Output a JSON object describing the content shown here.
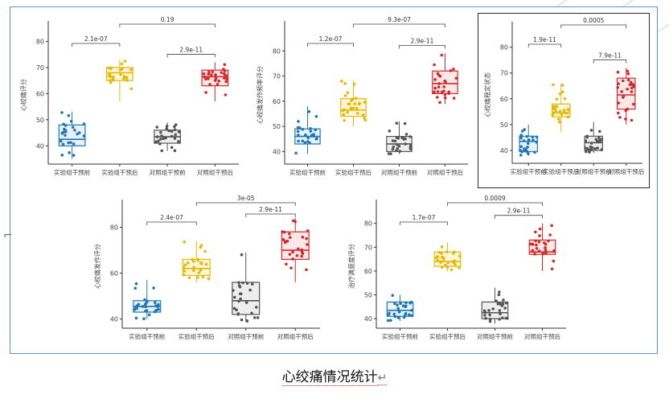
{
  "caption": "心绞痛情况统计",
  "colors": {
    "blue": "#1f77b4",
    "yellow": "#e6b800",
    "gray": "#555555",
    "red": "#d62728",
    "border": "#5b8fd6"
  },
  "chart_data": [
    {
      "type": "box",
      "ylabel": "心绞痛评分",
      "ylim": [
        33,
        86
      ],
      "yticks": [
        40,
        50,
        60,
        70,
        80
      ],
      "categories": [
        "实验组干预前",
        "实验组干预后",
        "对照组干预前",
        "对照组干预后"
      ],
      "boxes": [
        {
          "min": 35,
          "q1": 40,
          "median": 42.5,
          "q3": 48,
          "max": 53
        },
        {
          "min": 57,
          "q1": 65,
          "median": 68,
          "q3": 70,
          "max": 73
        },
        {
          "min": 38,
          "q1": 41,
          "median": 43.5,
          "q3": 46,
          "max": 49
        },
        {
          "min": 57,
          "q1": 63,
          "median": 66.5,
          "q3": 69,
          "max": 72
        }
      ],
      "comparisons": [
        {
          "from": 0,
          "to": 1,
          "label": "2.1e-07"
        },
        {
          "from": 1,
          "to": 3,
          "label": "0.19"
        },
        {
          "from": 2,
          "to": 3,
          "label": "2.9e-11"
        }
      ]
    },
    {
      "type": "box",
      "ylabel": "心绞痛发作频率评分",
      "ylim": [
        35,
        90
      ],
      "yticks": [
        40,
        50,
        60,
        70,
        80
      ],
      "categories": [
        "实验组干预前",
        "实验组干预后",
        "对照组干预前",
        "对照组干预后"
      ],
      "boxes": [
        {
          "min": 39,
          "q1": 43,
          "median": 46,
          "q3": 49,
          "max": 58
        },
        {
          "min": 50,
          "q1": 54,
          "median": 56.5,
          "q3": 61,
          "max": 68
        },
        {
          "min": 39,
          "q1": 40,
          "median": 43,
          "q3": 46,
          "max": 52
        },
        {
          "min": 59,
          "q1": 63,
          "median": 67,
          "q3": 72,
          "max": 79
        }
      ],
      "comparisons": [
        {
          "from": 0,
          "to": 1,
          "label": "1.2e-07"
        },
        {
          "from": 1,
          "to": 3,
          "label": "9.3e-07"
        },
        {
          "from": 2,
          "to": 3,
          "label": "2.9e-11"
        }
      ]
    },
    {
      "type": "box",
      "ylabel": "心绞痛稳定状态",
      "ylim": [
        35,
        88
      ],
      "yticks": [
        40,
        50,
        60,
        70,
        80
      ],
      "categories": [
        "实验组干预前",
        "实验组干预后",
        "对照组干预前",
        "对照组干预后"
      ],
      "boxes": [
        {
          "min": 38,
          "q1": 39.5,
          "median": 43.5,
          "q3": 45.5,
          "max": 50
        },
        {
          "min": 47,
          "q1": 53,
          "median": 54.5,
          "q3": 58,
          "max": 66
        },
        {
          "min": 39,
          "q1": 40,
          "median": 43,
          "q3": 45.5,
          "max": 51
        },
        {
          "min": 50,
          "q1": 56,
          "median": 61.5,
          "q3": 68,
          "max": 72
        }
      ],
      "comparisons": [
        {
          "from": 0,
          "to": 1,
          "label": "1.9e-11"
        },
        {
          "from": 1,
          "to": 3,
          "label": "0.0005"
        },
        {
          "from": 2,
          "to": 3,
          "label": "7.9e-11"
        }
      ]
    },
    {
      "type": "box",
      "ylabel": "心绞痛发作评分",
      "ylim": [
        36,
        90
      ],
      "yticks": [
        40,
        60,
        80
      ],
      "categories": [
        "实验组干预前",
        "实验组干预后",
        "对照组干预前",
        "对照组干预后"
      ],
      "boxes": [
        {
          "min": 40,
          "q1": 43,
          "median": 45.5,
          "q3": 48,
          "max": 57
        },
        {
          "min": 56,
          "q1": 59,
          "median": 62,
          "q3": 66,
          "max": 74
        },
        {
          "min": 39,
          "q1": 42,
          "median": 48,
          "q3": 56,
          "max": 69
        },
        {
          "min": 56,
          "q1": 66,
          "median": 70,
          "q3": 78,
          "max": 84
        }
      ],
      "comparisons": [
        {
          "from": 0,
          "to": 1,
          "label": "2.4e-07"
        },
        {
          "from": 1,
          "to": 3,
          "label": "3e-05"
        },
        {
          "from": 2,
          "to": 3,
          "label": "2.9e-11"
        }
      ]
    },
    {
      "type": "box",
      "ylabel": "治疗满意度评分",
      "ylim": [
        36,
        88
      ],
      "yticks": [
        40,
        50,
        60,
        70,
        80
      ],
      "categories": [
        "实验组干预前",
        "实验组干预后",
        "对照组干预前",
        "对照组干预后"
      ],
      "boxes": [
        {
          "min": 39,
          "q1": 41,
          "median": 43.5,
          "q3": 47,
          "max": 50
        },
        {
          "min": 60,
          "q1": 62,
          "median": 64,
          "q3": 68,
          "max": 72
        },
        {
          "min": 38,
          "q1": 40,
          "median": 42.5,
          "q3": 47,
          "max": 53
        },
        {
          "min": 60,
          "q1": 67,
          "median": 68,
          "q3": 73,
          "max": 80
        }
      ],
      "comparisons": [
        {
          "from": 0,
          "to": 1,
          "label": "1.7e-07"
        },
        {
          "from": 1,
          "to": 3,
          "label": "0.0009"
        },
        {
          "from": 2,
          "to": 3,
          "label": "2.9e-11"
        }
      ]
    }
  ]
}
